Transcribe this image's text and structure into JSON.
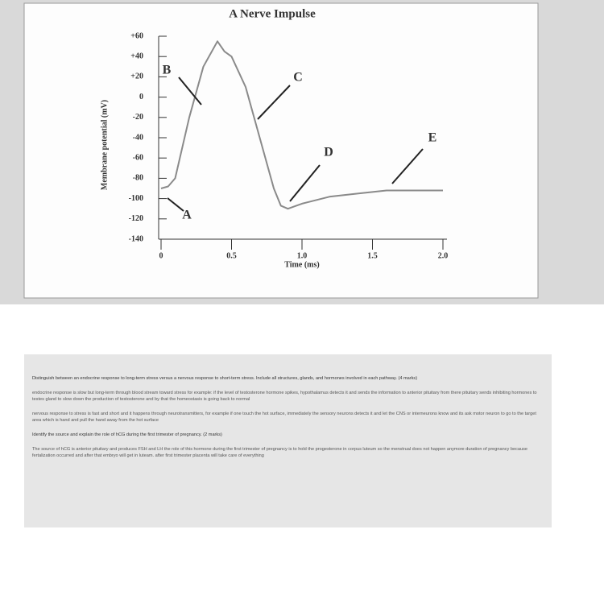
{
  "chart_data": {
    "type": "line",
    "title": "A Nerve Impulse",
    "x_label": "Time (ms)",
    "y_label": "Membrane potential (mV)",
    "x": [
      0,
      0.05,
      0.1,
      0.2,
      0.3,
      0.4,
      0.45,
      0.5,
      0.6,
      0.7,
      0.8,
      0.85,
      0.9,
      1.0,
      1.2,
      1.4,
      1.6,
      1.8,
      2.0
    ],
    "series": [
      {
        "name": "Membrane potential",
        "color": "#8a8a8a",
        "values": [
          -90,
          -88,
          -80,
          -20,
          30,
          55,
          45,
          40,
          10,
          -40,
          -90,
          -107,
          -110,
          -105,
          -98,
          -95,
          -92,
          -92,
          -92
        ]
      }
    ],
    "xlim": [
      0,
      2.0
    ],
    "xticks": [
      0,
      0.5,
      {
        "value": 1,
        "label": "1.0"
      },
      1.5,
      {
        "value": 2,
        "label": "2.0"
      }
    ],
    "ylim": [
      -140,
      60
    ],
    "yticks": [
      {
        "value": 60,
        "label": "+60"
      },
      {
        "value": 40,
        "label": "+40"
      },
      {
        "value": 20,
        "label": "+20"
      },
      0,
      -20,
      -40,
      -60,
      -80,
      -100,
      -120,
      -140
    ],
    "annotations": [
      "A",
      "B",
      "C",
      "D",
      "E"
    ]
  },
  "document": {
    "q1": "Distinguish between an endocrine response to long-term stress versus a nervous response to short-term stress. Include all structures, glands, and hormones involved in each pathway. (4 marks)",
    "a1": "endocrine response is slow but long-term through blood stream toward stress for example: if the level of testosterone hormone spikes, hypothalamus detects it and sends the information to anterior pituitary from there pituitary sends inhibiting hormones to testes gland to slow down the production of testosterone and by that the homeostasis is going back to normal",
    "a2": "nervous response to stress is fast and short and it happens through neurotransmitters, for example if one touch the hot surface, immediately the sensory neurons detects it and let the CNS or interneurons know and its ask motor neuron to go to the target area which is hand and pull the hand away from the hot surface",
    "q2": "Identify the source and explain the role of hCG during the first trimester of pregnancy. (2 marks)",
    "a3": "The source of hCG is anterior pituitary and produces FSH and LH the role of this hormone during the first trimester of pregnancy is to hold the progesterone in corpus luteum so the menstrual does not happen anymore duration of pregnancy because fertalization occurred and after that embryo will get in luteam. after first trimester placenta will take care of everything"
  }
}
